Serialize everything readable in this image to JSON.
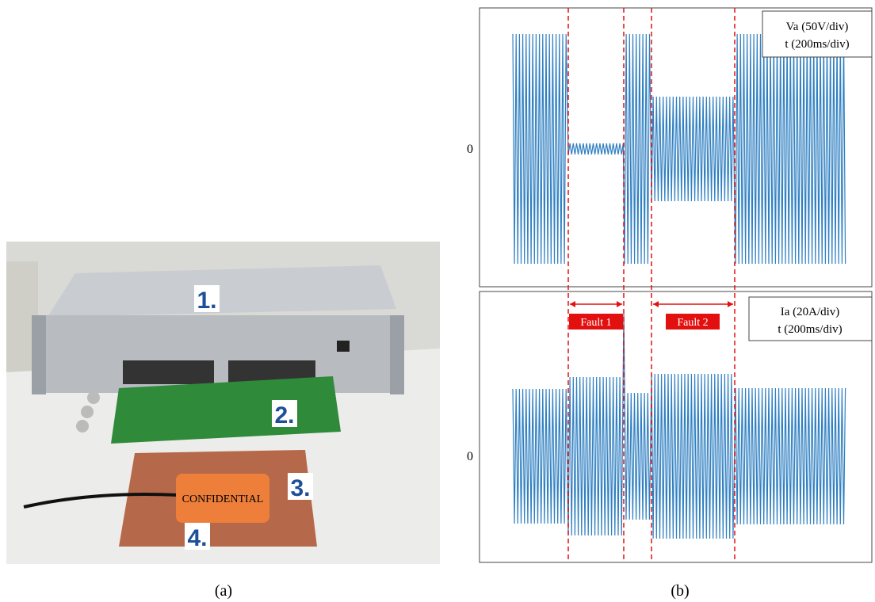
{
  "panel_a": {
    "caption": "(a)",
    "labels": [
      "1.",
      "2.",
      "3.",
      "4."
    ],
    "device_label": "CONFIDENTIAL"
  },
  "panel_b": {
    "caption": "(b)",
    "voltage_plot": {
      "zero_label": "0",
      "legend": [
        "Va (50V/div)",
        "t (200ms/div)"
      ]
    },
    "current_plot": {
      "zero_label": "0",
      "legend": [
        "Ia (20A/div)",
        "t (200ms/div)"
      ],
      "fault_labels": [
        "Fault 1",
        "Fault 2"
      ]
    }
  }
}
